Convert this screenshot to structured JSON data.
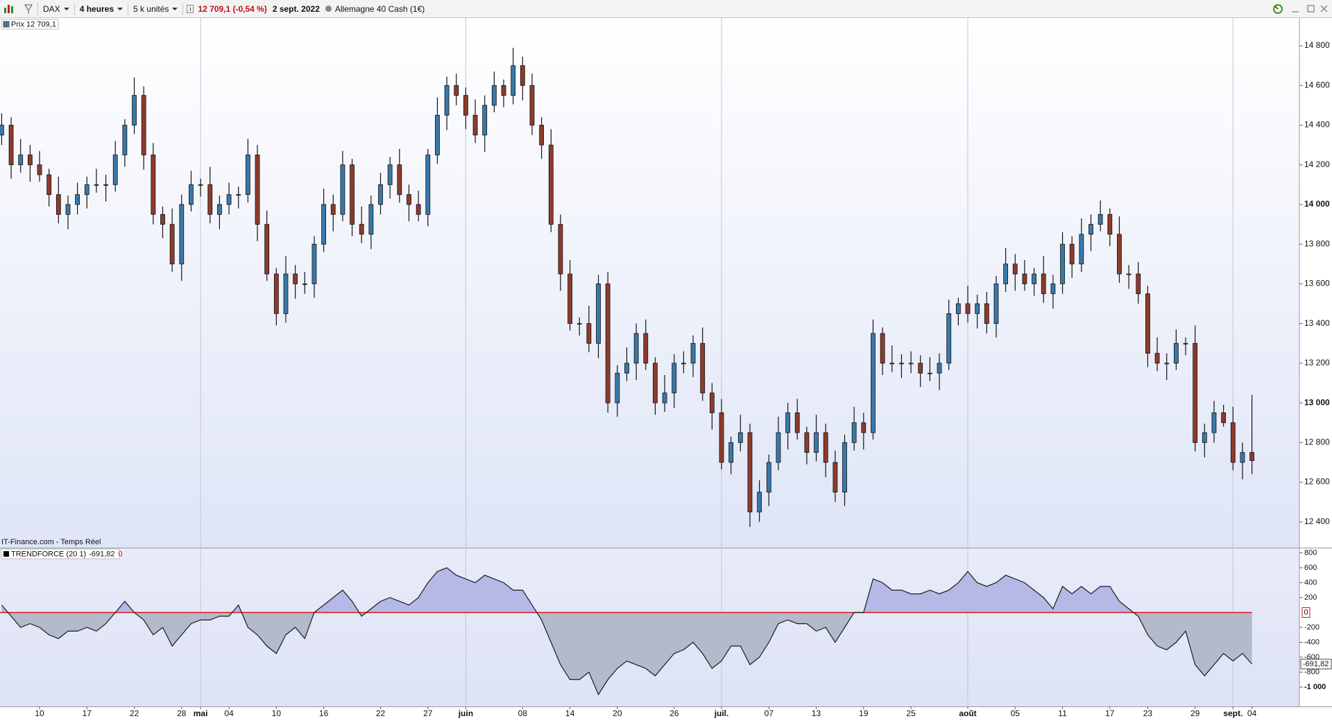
{
  "toolbar": {
    "symbol": "DAX",
    "period": "4 heures",
    "units": "5 k unités",
    "quote": "12 709,1 (-0,54 %)",
    "date": "2 sept. 2022",
    "instrument": "Allemagne 40 Cash (1€)"
  },
  "watermark": "IT-Finance.com - Temps Réel",
  "chart_data": [
    {
      "type": "candlestick",
      "legend": "Prix 12 709,1",
      "up_color": "#3a78a8",
      "down_color": "#8e3b2c",
      "open": [
        14350,
        14400,
        14200,
        14250,
        14200,
        14150,
        14050,
        13950,
        14000,
        14050,
        14100,
        14100,
        14100,
        14250,
        14400,
        14550,
        14250,
        13950,
        13900,
        13700,
        14000,
        14100,
        14100,
        13950,
        14000,
        14050,
        14050,
        14250,
        13900,
        13650,
        13450,
        13650,
        13600,
        13600,
        13800,
        14000,
        13950,
        14200,
        13900,
        13850,
        14000,
        14100,
        14200,
        14050,
        14000,
        13950,
        14250,
        14450,
        14600,
        14550,
        14450,
        14350,
        14500,
        14600,
        14550,
        14700,
        14600,
        14400,
        14300,
        13900,
        13650,
        13400,
        13400,
        13300,
        13600,
        13000,
        13150,
        13200,
        13350,
        13200,
        13000,
        13050,
        13200,
        13200,
        13300,
        13050,
        12950,
        12700,
        12800,
        12850,
        12450,
        12550,
        12700,
        12850,
        12950,
        12850,
        12750,
        12850,
        12700,
        12550,
        12800,
        12900,
        12850,
        13350,
        13200,
        13200,
        13200,
        13200,
        13150,
        13150,
        13200,
        13450,
        13500,
        13450,
        13500,
        13400,
        13600,
        13700,
        13650,
        13600,
        13650,
        13550,
        13600,
        13800,
        13700,
        13850,
        13900,
        13950,
        13850,
        13650,
        13650,
        13550,
        13250,
        13200,
        13200,
        13300,
        13300,
        12800,
        12850,
        12950,
        12900,
        12700,
        12750
      ],
      "high": [
        14460,
        14440,
        14330,
        14300,
        14270,
        14180,
        14140,
        14045,
        14110,
        14140,
        14180,
        14150,
        14320,
        14430,
        14640,
        14595,
        14310,
        13990,
        13980,
        14050,
        14170,
        14130,
        14190,
        14045,
        14110,
        14090,
        14330,
        14300,
        13970,
        13680,
        13740,
        13695,
        13660,
        13840,
        14080,
        14050,
        14270,
        14230,
        13990,
        14045,
        14160,
        14240,
        14280,
        14100,
        14070,
        14280,
        14540,
        14645,
        14660,
        14590,
        14530,
        14550,
        14670,
        14630,
        14790,
        14745,
        14660,
        14440,
        14380,
        13950,
        13720,
        13430,
        13490,
        13645,
        13660,
        13190,
        13280,
        13400,
        13420,
        13230,
        13140,
        13245,
        13260,
        13340,
        13380,
        13100,
        13020,
        12830,
        12940,
        12895,
        12610,
        12740,
        12930,
        13000,
        13020,
        12880,
        12940,
        12895,
        12760,
        12840,
        12980,
        12950,
        13420,
        13380,
        13290,
        13245,
        13260,
        13240,
        13230,
        13250,
        13520,
        13530,
        13590,
        13545,
        13560,
        13640,
        13780,
        13750,
        13720,
        13680,
        13740,
        13645,
        13860,
        13840,
        13930,
        13950,
        14020,
        13980,
        13940,
        13695,
        13710,
        13590,
        13330,
        13250,
        13370,
        13330,
        13390,
        12895,
        13010,
        12990,
        12980,
        12800,
        13040
      ],
      "low": [
        14300,
        14130,
        14160,
        14115,
        14115,
        13990,
        13905,
        13875,
        13950,
        13980,
        14060,
        14015,
        14065,
        14190,
        14355,
        14175,
        13900,
        13830,
        13660,
        13615,
        13965,
        14040,
        13905,
        13875,
        13950,
        13980,
        14010,
        13815,
        13615,
        13390,
        13405,
        13525,
        13550,
        13530,
        13760,
        13865,
        13915,
        13840,
        13805,
        13775,
        13950,
        14030,
        14010,
        13915,
        13915,
        13890,
        14205,
        14375,
        14500,
        14380,
        14310,
        14265,
        14465,
        14490,
        14505,
        14525,
        14350,
        14230,
        13860,
        13565,
        13365,
        13340,
        13255,
        13225,
        12950,
        12930,
        13110,
        13115,
        13165,
        12940,
        12955,
        12975,
        13150,
        13130,
        13010,
        12865,
        12665,
        12640,
        12755,
        12375,
        12400,
        12480,
        12660,
        12765,
        12815,
        12690,
        12705,
        12625,
        12500,
        12480,
        12760,
        12765,
        12815,
        13140,
        13155,
        13125,
        13150,
        13080,
        13110,
        13065,
        13165,
        13390,
        13405,
        13375,
        13350,
        13330,
        13560,
        13565,
        13565,
        13540,
        13505,
        13475,
        13550,
        13630,
        13660,
        13765,
        13865,
        13790,
        13605,
        13575,
        13500,
        13180,
        13160,
        13115,
        13165,
        13240,
        12755,
        12725,
        12800,
        12880,
        12660,
        12615,
        12640
      ],
      "close": [
        14400,
        14200,
        14250,
        14200,
        14150,
        14050,
        13950,
        14000,
        14050,
        14100,
        14100,
        14100,
        14250,
        14400,
        14550,
        14250,
        13950,
        13900,
        13700,
        14000,
        14100,
        14100,
        13950,
        14000,
        14050,
        14050,
        14250,
        13900,
        13650,
        13450,
        13650,
        13600,
        13600,
        13800,
        14000,
        13950,
        14200,
        13900,
        13850,
        14000,
        14100,
        14200,
        14050,
        14000,
        13950,
        14250,
        14450,
        14600,
        14550,
        14450,
        14350,
        14500,
        14600,
        14550,
        14700,
        14600,
        14400,
        14300,
        13900,
        13650,
        13400,
        13400,
        13300,
        13600,
        13000,
        13150,
        13200,
        13350,
        13200,
        13000,
        13050,
        13200,
        13200,
        13300,
        13050,
        12950,
        12700,
        12800,
        12850,
        12450,
        12550,
        12700,
        12850,
        12950,
        12850,
        12750,
        12850,
        12700,
        12550,
        12800,
        12900,
        12850,
        13350,
        13200,
        13200,
        13200,
        13200,
        13150,
        13150,
        13200,
        13450,
        13500,
        13450,
        13500,
        13400,
        13600,
        13700,
        13650,
        13600,
        13650,
        13550,
        13600,
        13800,
        13700,
        13850,
        13900,
        13950,
        13850,
        13650,
        13650,
        13550,
        13250,
        13200,
        13200,
        13300,
        13300,
        12800,
        12850,
        12950,
        12900,
        12700,
        12750,
        12709.1
      ],
      "ylim": [
        12270,
        14940
      ],
      "yticks": [
        {
          "value": 14800,
          "label": "14 800"
        },
        {
          "value": 14600,
          "label": "14 600"
        },
        {
          "value": 14400,
          "label": "14 400"
        },
        {
          "value": 14200,
          "label": "14 200"
        },
        {
          "value": 14000,
          "label": "14 000"
        },
        {
          "value": 13800,
          "label": "13 800"
        },
        {
          "value": 13600,
          "label": "13 600"
        },
        {
          "value": 13400,
          "label": "13 400"
        },
        {
          "value": 13200,
          "label": "13 200"
        },
        {
          "value": 13000,
          "label": "13 000"
        },
        {
          "value": 12800,
          "label": "12 800"
        },
        {
          "value": 12600,
          "label": "12 600"
        },
        {
          "value": 12400,
          "label": "12 400"
        }
      ]
    },
    {
      "type": "area",
      "legend": "TRENDFORCE (20 1)",
      "last_value_label": "-691,82",
      "color": "#1a1a1a",
      "fill_above": "#b4b9e6",
      "fill_below": "#b3bacb",
      "reference_line": {
        "value": 0,
        "label": "0",
        "color": "#e0101a"
      },
      "categories": [
        null,
        null,
        null,
        null,
        "10",
        null,
        null,
        null,
        null,
        "17",
        null,
        null,
        null,
        null,
        "22",
        null,
        null,
        null,
        null,
        "28",
        null,
        "mai",
        null,
        null,
        "04",
        null,
        null,
        null,
        null,
        "10",
        null,
        null,
        null,
        null,
        "16",
        null,
        null,
        null,
        null,
        null,
        "22",
        null,
        null,
        null,
        null,
        "27",
        null,
        null,
        null,
        "juin",
        null,
        null,
        null,
        null,
        null,
        "08",
        null,
        null,
        null,
        null,
        "14",
        null,
        null,
        null,
        null,
        "20",
        null,
        null,
        null,
        null,
        null,
        "26",
        null,
        null,
        null,
        null,
        "juil.",
        null,
        null,
        null,
        null,
        "07",
        null,
        null,
        null,
        null,
        "13",
        null,
        null,
        null,
        null,
        "19",
        null,
        null,
        null,
        null,
        "25",
        null,
        null,
        null,
        null,
        null,
        "août",
        null,
        null,
        null,
        null,
        "05",
        null,
        null,
        null,
        null,
        "11",
        null,
        null,
        null,
        null,
        "17",
        null,
        null,
        null,
        "23",
        null,
        null,
        null,
        null,
        "29",
        null,
        null,
        null,
        "sept.",
        null,
        "04"
      ],
      "values": [
        100,
        -50,
        -200,
        -150,
        -200,
        -300,
        -350,
        -250,
        -250,
        -200,
        -250,
        -150,
        0,
        150,
        0,
        -100,
        -300,
        -200,
        -450,
        -300,
        -150,
        -100,
        -100,
        -50,
        -50,
        100,
        -200,
        -300,
        -450,
        -550,
        -300,
        -200,
        -350,
        0,
        100,
        200,
        300,
        150,
        -50,
        50,
        150,
        200,
        150,
        100,
        200,
        400,
        550,
        600,
        500,
        450,
        400,
        500,
        450,
        400,
        300,
        300,
        100,
        -100,
        -400,
        -700,
        -900,
        -900,
        -800,
        -1100,
        -900,
        -750,
        -650,
        -700,
        -750,
        -850,
        -700,
        -550,
        -500,
        -400,
        -550,
        -750,
        -650,
        -450,
        -450,
        -700,
        -600,
        -400,
        -150,
        -100,
        -150,
        -150,
        -250,
        -200,
        -400,
        -200,
        0,
        0,
        450,
        400,
        300,
        300,
        250,
        250,
        300,
        250,
        300,
        400,
        550,
        400,
        350,
        400,
        500,
        450,
        400,
        300,
        200,
        50,
        350,
        250,
        350,
        250,
        350,
        350,
        150,
        50,
        -50,
        -300,
        -450,
        -500,
        -400,
        -250,
        -700,
        -850,
        -700,
        -550,
        -650,
        -550,
        -691.82
      ],
      "ylim": [
        -1260,
        860
      ],
      "yticks": [
        800,
        600,
        400,
        200,
        -200,
        -400,
        -600,
        -800,
        {
          "value": -1000,
          "label": "-1 000"
        }
      ]
    }
  ]
}
